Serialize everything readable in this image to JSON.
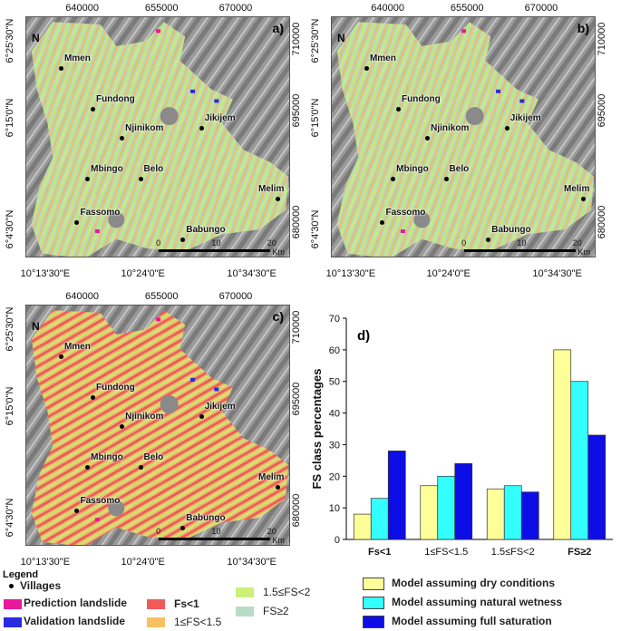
{
  "maps": [
    {
      "panel_label": "a)",
      "x_ticks_top": [
        "640000",
        "655000",
        "670000"
      ],
      "y_ticks_right": [
        "710000",
        "695000",
        "680000"
      ],
      "x_ticks_bottom": [
        "10°13'30\"E",
        "10°24'0\"E",
        "10°34'30\"E"
      ],
      "y_ticks_left": [
        "6°25'30\"N",
        "6°15'0\"N",
        "6°4'30\"N"
      ],
      "scale": {
        "start": "0",
        "mid": "10",
        "end": "20",
        "unit": "Km"
      },
      "north": "N",
      "fill_mix": "mostly-stable"
    },
    {
      "panel_label": "b)",
      "x_ticks_top": [
        "640000",
        "655000",
        "670000"
      ],
      "y_ticks_right": [
        "710000",
        "695000",
        "680000"
      ],
      "x_ticks_bottom": [
        "10°13'30\"E",
        "10°24'0\"E",
        "10°34'30\"E"
      ],
      "y_ticks_left": [
        "6°25'30\"N",
        "6°15'0\"N",
        "6°4'30\"N"
      ],
      "scale": {
        "start": "0",
        "mid": "10",
        "end": "20",
        "unit": "Km"
      },
      "north": "N",
      "fill_mix": "mostly-stable"
    },
    {
      "panel_label": "c)",
      "x_ticks_top": [
        "640000",
        "655000",
        "670000"
      ],
      "y_ticks_right": [
        "710000",
        "695000",
        "680000"
      ],
      "x_ticks_bottom": [
        "10°13'30\"E",
        "10°24'0\"E",
        "10°34'30\"E"
      ],
      "y_ticks_left": [
        "6°25'30\"N",
        "6°15'0\"N",
        "6°4'30\"N"
      ],
      "scale": {
        "start": "0",
        "mid": "10",
        "end": "20",
        "unit": "Km"
      },
      "north": "N",
      "fill_mix": "unstable"
    }
  ],
  "villages": [
    "Mmen",
    "Fundong",
    "Njinikom",
    "Jikijem",
    "Mbingo",
    "Belo",
    "Melim",
    "Fassomo",
    "Babungo"
  ],
  "legend": {
    "title": "Legend",
    "villages": "Villages",
    "prediction": "Prediction landslide",
    "validation": "Validation landslide",
    "fs_lt1": "Fs<1",
    "fs_1_15": "1≤FS<1.5",
    "fs_15_2": "1.5≤FS<2",
    "fs_ge2": "FS≥2",
    "colors": {
      "prediction": "#e8189a",
      "validation": "#2a2adf",
      "fs_lt1": "#f25a5a",
      "fs_1_15": "#f7c060",
      "fs_15_2": "#ccf07a",
      "fs_ge2": "#b8dcc6"
    }
  },
  "chart_data": {
    "type": "bar",
    "panel_label": "d)",
    "categories": [
      "Fs<1",
      "1≤FS<1.5",
      "1.5≤FS<2",
      "FS≥2"
    ],
    "series": [
      {
        "name": "Model assuming dry conditions",
        "values": [
          8,
          17,
          16,
          60
        ],
        "color": "#ffff99"
      },
      {
        "name": "Model assuming natural wetness",
        "values": [
          13,
          20,
          17,
          50
        ],
        "color": "#33ffff"
      },
      {
        "name": "Model assuming full saturation",
        "values": [
          28,
          24,
          15,
          33
        ],
        "color": "#0d0de6"
      }
    ],
    "xlabel": "",
    "ylabel": "FS class percentages",
    "ylim": [
      0,
      70
    ],
    "yticks": [
      "0",
      "10",
      "20",
      "30",
      "40",
      "50",
      "60",
      "70"
    ],
    "legend_position": "bottom"
  }
}
